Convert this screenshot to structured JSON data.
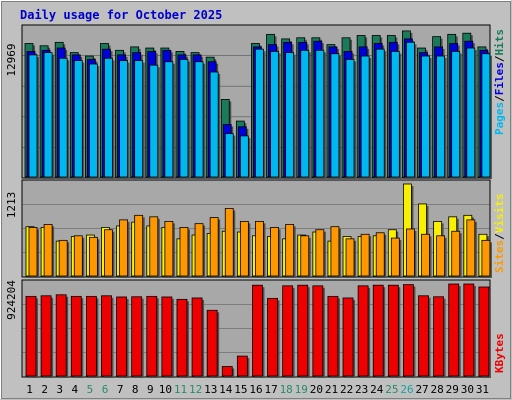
{
  "title": "Daily usage for October 2025",
  "colors": {
    "background": "#c0c0c0",
    "plot": "#a8a8a8",
    "title": "#0000cc",
    "hits": "#1a7a5a",
    "files": "#0000dd",
    "pages": "#00b8f0",
    "visits": "#f8f000",
    "sites": "#ff9800",
    "kbytes": "#ee0000",
    "weekend_label": "#2a8a6a",
    "today_label": "#1aa0a0"
  },
  "chart_data": [
    {
      "type": "bar",
      "name": "hits-files-pages",
      "ymax_label": "12969",
      "ymax": 12969,
      "legend": {
        "pages": "Pages",
        "sep1": "/",
        "files": "Files",
        "sep2": "/",
        "hits": "Hits"
      },
      "categories": [
        "1",
        "2",
        "3",
        "4",
        "5",
        "6",
        "7",
        "8",
        "9",
        "10",
        "11",
        "12",
        "13",
        "14",
        "15",
        "16",
        "17",
        "18",
        "19",
        "20",
        "21",
        "22",
        "23",
        "24",
        "25",
        "26",
        "27",
        "28",
        "29",
        "30",
        "31"
      ],
      "series": [
        {
          "name": "Hits",
          "values": [
            11700,
            11500,
            11800,
            10900,
            10600,
            11700,
            11100,
            11400,
            11300,
            11300,
            11000,
            10900,
            10500,
            6800,
            4900,
            11700,
            12500,
            12100,
            12200,
            12200,
            11600,
            12200,
            12400,
            12400,
            12400,
            12800,
            11300,
            12300,
            12500,
            12600,
            11400
          ]
        },
        {
          "name": "Files",
          "values": [
            11000,
            11100,
            11300,
            10700,
            10300,
            11200,
            10700,
            10900,
            11000,
            11100,
            10700,
            10700,
            10100,
            4600,
            4400,
            11400,
            11600,
            11800,
            11800,
            11900,
            11400,
            11000,
            11400,
            11700,
            11800,
            12100,
            10900,
            11400,
            11700,
            11900,
            11100
          ]
        },
        {
          "name": "Pages",
          "values": [
            10700,
            10900,
            10400,
            10200,
            9900,
            10400,
            10200,
            10200,
            9800,
            10100,
            10300,
            10100,
            9200,
            3800,
            3600,
            11200,
            11000,
            10900,
            11100,
            11100,
            10800,
            10300,
            10600,
            11200,
            11000,
            11800,
            10600,
            10600,
            11000,
            11300,
            10800
          ]
        }
      ]
    },
    {
      "type": "bar",
      "name": "visits-sites",
      "ymax_label": "1213",
      "ymax": 1213,
      "legend": {
        "sites": "Sites",
        "sep": "/",
        "visits": "Visits"
      },
      "categories": [
        "1",
        "2",
        "3",
        "4",
        "5",
        "6",
        "7",
        "8",
        "9",
        "10",
        "11",
        "12",
        "13",
        "14",
        "15",
        "16",
        "17",
        "18",
        "19",
        "20",
        "21",
        "22",
        "23",
        "24",
        "25",
        "26",
        "27",
        "28",
        "29",
        "30",
        "31"
      ],
      "series": [
        {
          "name": "Visits",
          "values": [
            650,
            640,
            460,
            520,
            540,
            640,
            660,
            710,
            660,
            640,
            490,
            540,
            560,
            590,
            580,
            530,
            520,
            490,
            540,
            580,
            460,
            520,
            520,
            530,
            610,
            1213,
            950,
            720,
            780,
            800,
            550
          ]
        },
        {
          "name": "Sites",
          "values": [
            640,
            680,
            470,
            530,
            510,
            610,
            740,
            800,
            780,
            720,
            640,
            690,
            770,
            890,
            720,
            720,
            640,
            680,
            530,
            610,
            650,
            490,
            550,
            570,
            500,
            620,
            550,
            530,
            590,
            740,
            470
          ]
        }
      ]
    },
    {
      "type": "bar",
      "name": "kbytes",
      "ymax_label": "924204",
      "ymax": 924204,
      "legend": {
        "kbytes": "KBytes"
      },
      "categories": [
        "1",
        "2",
        "3",
        "4",
        "5",
        "6",
        "7",
        "8",
        "9",
        "10",
        "11",
        "12",
        "13",
        "14",
        "15",
        "16",
        "17",
        "18",
        "19",
        "20",
        "21",
        "22",
        "23",
        "24",
        "25",
        "26",
        "27",
        "28",
        "29",
        "30",
        "31"
      ],
      "series": [
        {
          "name": "KBytes",
          "values": [
            800000,
            806000,
            816000,
            800000,
            800000,
            806000,
            794000,
            796000,
            800000,
            794000,
            770000,
            784000,
            660000,
            95000,
            200000,
            912000,
            780000,
            906000,
            912000,
            906000,
            800000,
            784000,
            906000,
            912000,
            912000,
            918000,
            806000,
            796000,
            924204,
            924204,
            894000
          ]
        }
      ]
    }
  ],
  "day_label_style": [
    "n",
    "n",
    "n",
    "n",
    "w",
    "w",
    "n",
    "n",
    "n",
    "n",
    "w",
    "w",
    "n",
    "n",
    "n",
    "n",
    "n",
    "w",
    "w",
    "n",
    "n",
    "n",
    "n",
    "n",
    "w",
    "t",
    "n",
    "n",
    "n",
    "n",
    "n"
  ]
}
